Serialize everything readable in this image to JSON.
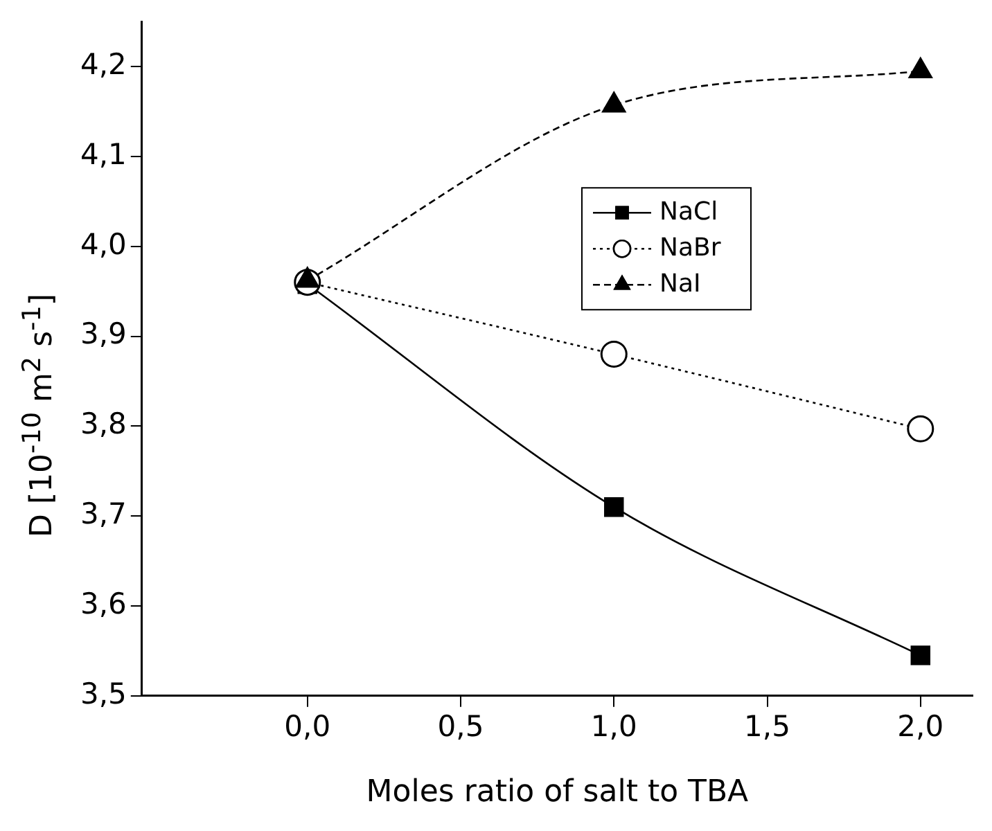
{
  "chart_data": {
    "type": "line",
    "xlabel": "Moles ratio of salt to TBA",
    "ylabel": "D [10$^{-10}$ m$^{2}$ s$^{-1}$]",
    "x": [
      0,
      1,
      2
    ],
    "series": [
      {
        "name": "NaCl",
        "color": "#000000",
        "values": [
          3.958,
          3.71,
          3.545
        ],
        "marker": "square",
        "line_style": "solid"
      },
      {
        "name": "NaBr",
        "color": "#000000",
        "values": [
          3.96,
          3.88,
          3.797
        ],
        "marker": "circle",
        "line_style": "dotted"
      },
      {
        "name": "NaI",
        "color": "#000000",
        "values": [
          3.962,
          4.157,
          4.195
        ],
        "marker": "triangle",
        "line_style": "dashed"
      }
    ],
    "xlim": [
      -0.54,
      2.17
    ],
    "xticks": [
      {
        "value": 0,
        "label": "0,0"
      },
      {
        "value": 0.5,
        "label": "0,5"
      },
      {
        "value": 1,
        "label": "1,0"
      },
      {
        "value": 1.5,
        "label": "1,5"
      },
      {
        "value": 2,
        "label": "2,0"
      }
    ],
    "ylim": [
      3.5,
      4.25
    ],
    "yticks": [
      {
        "value": 3.5,
        "label": "3,5"
      },
      {
        "value": 3.6,
        "label": "3,6"
      },
      {
        "value": 3.7,
        "label": "3,7"
      },
      {
        "value": 3.8,
        "label": "3,8"
      },
      {
        "value": 3.9,
        "label": "3,9"
      },
      {
        "value": 4.0,
        "label": "4,0"
      },
      {
        "value": 4.1,
        "label": "4,1"
      },
      {
        "value": 4.2,
        "label": "4,2"
      }
    ],
    "grid": false,
    "legend": "top right"
  }
}
